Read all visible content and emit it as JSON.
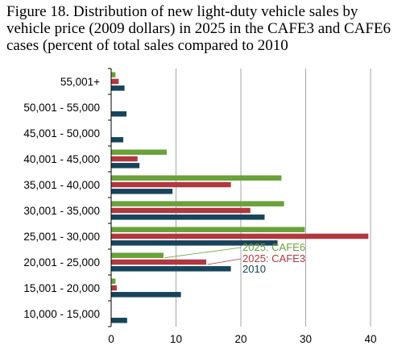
{
  "title": "Figure 18. Distribution of new light-duty vehicle sales by vehicle price (2009 dollars) in 2025 in the CAFE3 and CAFE6 cases (percent of total sales compared to 2010",
  "colors": {
    "cafe6": "#6aa13a",
    "cafe3": "#b2373f",
    "y2010": "#17445a",
    "grid": "#a6a6a6"
  },
  "chart_data": {
    "type": "bar",
    "orientation": "horizontal",
    "title": "Figure 18. Distribution of new light-duty vehicle sales by vehicle price (2009 dollars) in 2025 in the CAFE3 and CAFE6 cases (percent of total sales compared to 2010",
    "categories": [
      "55,001+",
      "50,001 - 55,000",
      "45,001 - 50,000",
      "40,001 - 45,000",
      "35,001 - 40,000",
      "30,001 - 35,000",
      "25,001 - 30,000",
      "20,001 - 25,000",
      "15,001 - 20,000",
      "10,000 - 15,000"
    ],
    "series": [
      {
        "name": "2025: CAFE6",
        "values": [
          0.6,
          0,
          0,
          8.5,
          26.2,
          26.6,
          29.8,
          8.0,
          0.6,
          0
        ]
      },
      {
        "name": "2025: CAFE3",
        "values": [
          1.1,
          0,
          0,
          4.0,
          18.4,
          21.4,
          39.6,
          14.6,
          0.8,
          0
        ]
      },
      {
        "name": "2010",
        "values": [
          2.0,
          2.3,
          1.8,
          4.3,
          9.4,
          23.6,
          25.6,
          18.4,
          10.7,
          2.4
        ]
      }
    ],
    "xlim": [
      0,
      40
    ],
    "xticks": [
      0,
      10,
      20,
      30,
      40
    ],
    "grid": "vertical",
    "legend_placement": "inside, right of 25,001 - 30,000 group"
  }
}
